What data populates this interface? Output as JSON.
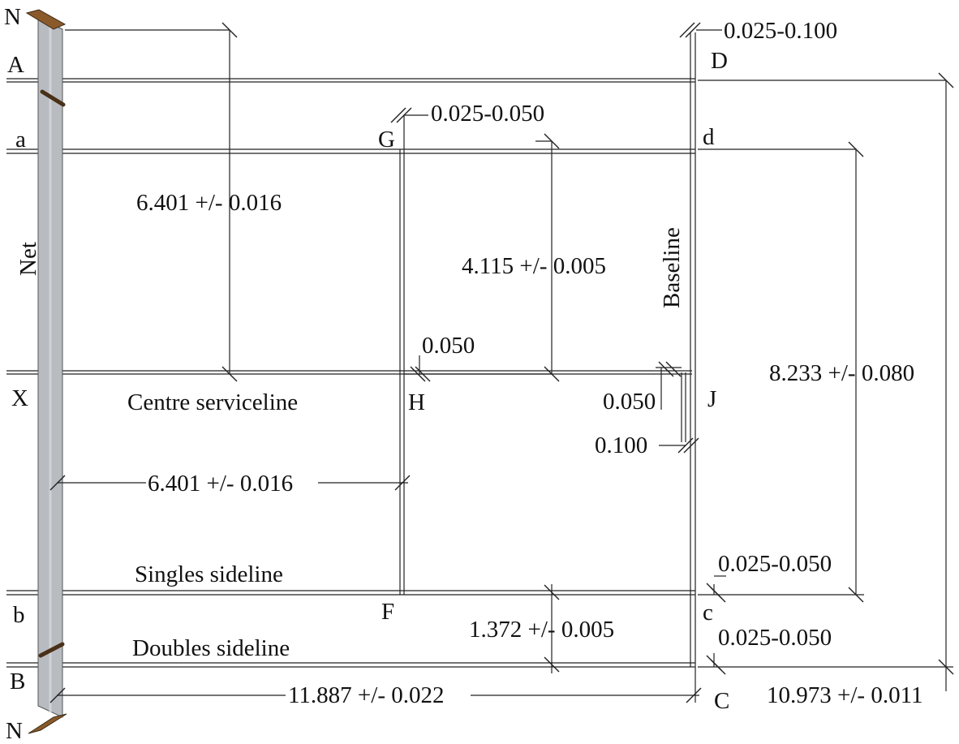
{
  "points": {
    "N_top": "N",
    "N_bottom": "N",
    "A": "A",
    "a": "a",
    "X": "X",
    "b": "b",
    "B": "B",
    "G": "G",
    "H": "H",
    "F": "F",
    "D": "D",
    "d": "d",
    "J": "J",
    "c": "c",
    "C": "C"
  },
  "lines": {
    "net": "Net",
    "baseline": "Baseline",
    "centre_serviceline": "Centre serviceline",
    "singles_sideline": "Singles sideline",
    "doubles_sideline": "Doubles sideline"
  },
  "dimensions": {
    "baseline_width_top": "0.025-0.100",
    "service_line_width": "0.025-0.050",
    "net_to_centre_service": "6.401 +/- 0.016",
    "centre_service_to_singles": "4.115 +/- 0.005",
    "centre_line_width": "0.050",
    "centre_mark_width": "0.050",
    "centre_mark_length": "0.100",
    "singles_court_width": "8.233 +/- 0.080",
    "net_to_service_line": "6.401 +/- 0.016",
    "singles_sideline_width": "0.025-0.050",
    "alley_width": "1.372 +/- 0.005",
    "doubles_sideline_width": "0.025-0.050",
    "half_court_length": "11.887 +/- 0.022",
    "doubles_court_width": "10.973 +/- 0.011"
  },
  "colors": {
    "line": "#222222",
    "net_fill": "#b8bcc1",
    "post": "#8a5a2b"
  }
}
